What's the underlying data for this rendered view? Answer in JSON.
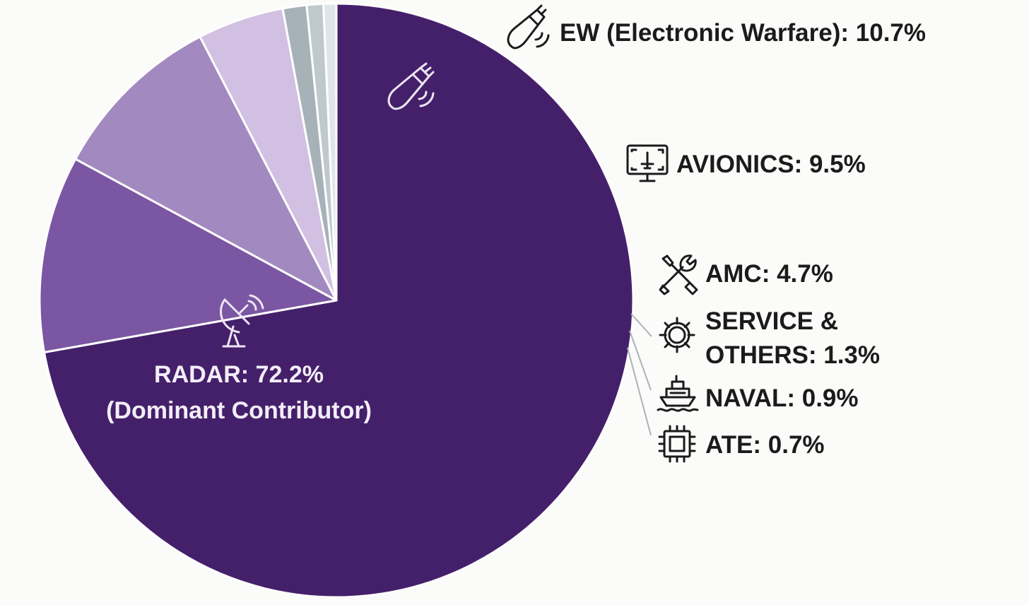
{
  "chart_data": {
    "type": "pie",
    "title": "",
    "slices": [
      {
        "key": "radar",
        "label": "RADAR: 72.2%",
        "sublabel": "(Dominant Contributor)",
        "value": 72.2,
        "color": "#45206a",
        "icon": "radar-dish-icon"
      },
      {
        "key": "ew",
        "label": "EW (Electronic Warfare): 10.7%",
        "value": 10.7,
        "color": "#7b56a2",
        "icon": "missile-icon"
      },
      {
        "key": "avionics",
        "label": "AVIONICS: 9.5%",
        "value": 9.5,
        "color": "#a289bf",
        "icon": "monitor-aircraft-icon"
      },
      {
        "key": "amc",
        "label": "AMC: 4.7%",
        "value": 4.7,
        "color": "#d1c0e2",
        "icon": "wrench-screwdriver-icon"
      },
      {
        "key": "service",
        "label": "SERVICE &",
        "label_line2": "OTHERS: 1.3%",
        "value": 1.3,
        "color": "#a7b2b8",
        "icon": "gear-icon"
      },
      {
        "key": "naval",
        "label": "NAVAL: 0.9%",
        "value": 0.9,
        "color": "#bfc8cd",
        "icon": "ship-icon"
      },
      {
        "key": "ate",
        "label": "ATE: 0.7%",
        "value": 0.7,
        "color": "#dfe5e9",
        "icon": "chip-icon"
      }
    ],
    "start_angle_deg": 0,
    "direction": "clockwise",
    "legend": "none",
    "slice_border_color": "#ffffff"
  }
}
